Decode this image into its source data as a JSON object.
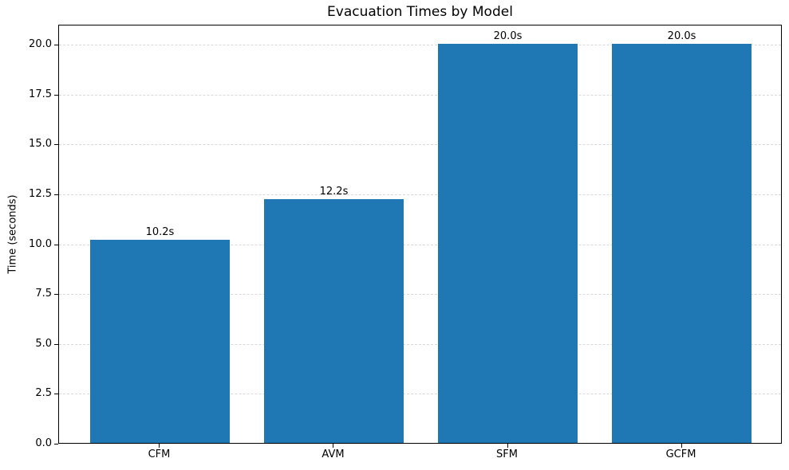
{
  "chart_data": {
    "type": "bar",
    "title": "Evacuation Times by Model",
    "xlabel": "",
    "ylabel": "Time (seconds)",
    "categories": [
      "CFM",
      "AVM",
      "SFM",
      "GCFM"
    ],
    "values": [
      10.2,
      12.2,
      20.0,
      20.0
    ],
    "bar_value_labels": [
      "10.2s",
      "12.2s",
      "20.0s",
      "20.0s"
    ],
    "ylim": [
      0,
      21
    ],
    "ytick_labels": [
      "0.0",
      "2.5",
      "5.0",
      "7.5",
      "10.0",
      "12.5",
      "15.0",
      "17.5",
      "20.0"
    ],
    "grid": "horizontal-dashed",
    "legend": "none",
    "colors": {
      "bar": "#1f77b4",
      "grid": "#d9d9d9",
      "axis": "#000000",
      "text": "#000000",
      "background": "#ffffff"
    }
  }
}
